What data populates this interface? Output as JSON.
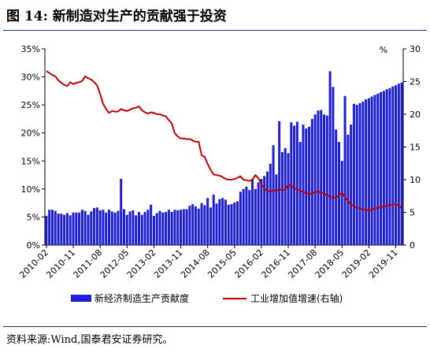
{
  "title": "图 14:  新制造对生产的贡献强于投资",
  "source": "资料来源:Wind,国泰君安证券研究。",
  "chart_data": {
    "type": "bar",
    "y_left": {
      "ticks": [
        "0%",
        "5%",
        "10%",
        "15%",
        "20%",
        "25%",
        "30%",
        "35%"
      ],
      "ylim": [
        0,
        35
      ]
    },
    "y_right": {
      "label": "%",
      "ticks": [
        "0",
        "5",
        "10",
        "15",
        "20",
        "25",
        "30"
      ],
      "ylim": [
        0,
        30
      ]
    },
    "x_tick_labels": [
      "2010-02",
      "2010-11",
      "2011-08",
      "2012-05",
      "2013-02",
      "2013-11",
      "2014-08",
      "2015-05",
      "2016-02",
      "2016-11",
      "2017-08",
      "2018-05",
      "2019-02",
      "2019-11"
    ],
    "first_month": "2010-02",
    "months_count": 120,
    "series": [
      {
        "name": "新经济制造生产贡献度",
        "axis": "left",
        "type": "bar",
        "color": "#1f1fd6",
        "values": [
          5.2,
          6.3,
          6.3,
          6.1,
          5.6,
          5.6,
          5.4,
          5.7,
          5.3,
          5.8,
          5.8,
          5.8,
          6.3,
          6.1,
          5.4,
          6.0,
          6.6,
          6.7,
          6.2,
          6.3,
          5.8,
          6.3,
          6.0,
          5.8,
          6.1,
          11.8,
          6.4,
          5.4,
          6.0,
          6.2,
          5.3,
          5.9,
          5.4,
          5.9,
          6.3,
          7.2,
          5.2,
          5.7,
          6.1,
          5.8,
          5.9,
          6.3,
          5.9,
          6.3,
          6.2,
          6.3,
          6.4,
          6.4,
          7.0,
          7.3,
          6.9,
          6.5,
          7.5,
          7.1,
          8.4,
          6.7,
          9.0,
          7.4,
          8.2,
          8.4,
          8.1,
          7.2,
          7.3,
          7.6,
          7.8,
          9.5,
          10.0,
          10.4,
          9.8,
          11.8,
          10.0,
          11.2,
          11.8,
          12.3,
          13.1,
          14.5,
          17.8,
          12.6,
          22.1,
          16.6,
          17.3,
          16.4,
          21.9,
          21.3,
          22.0,
          18.4,
          21.5,
          20.8,
          21.1,
          22.5,
          23.3,
          24.0,
          24.1,
          23.3,
          23.1,
          31.0,
          28.2,
          20.6,
          18.4,
          15.0,
          26.6,
          19.7,
          21.5,
          25.2,
          25.0,
          25.3,
          25.6,
          26.0,
          26.2,
          26.5,
          26.8,
          27.0,
          27.3,
          27.5,
          27.8,
          28.0,
          28.3,
          28.5,
          28.8,
          29.0
        ]
      },
      {
        "name": "工业增加值增速(右轴)",
        "axis": "right",
        "type": "line",
        "color": "#c00000",
        "values": [
          26.6,
          26.3,
          26.0,
          25.8,
          25.2,
          24.8,
          24.5,
          24.3,
          24.9,
          24.6,
          24.8,
          24.9,
          25.1,
          25.8,
          25.5,
          25.3,
          24.9,
          24.4,
          23.1,
          21.6,
          20.8,
          20.2,
          20.5,
          20.4,
          20.4,
          20.8,
          20.6,
          20.5,
          20.7,
          20.9,
          21.0,
          21.2,
          20.6,
          20.3,
          20.1,
          20.3,
          20.2,
          20.0,
          20.0,
          19.8,
          19.7,
          19.1,
          18.6,
          17.1,
          16.6,
          16.3,
          16.3,
          16.2,
          16.2,
          16.0,
          15.8,
          15.8,
          13.7,
          13.5,
          12.4,
          11.5,
          10.8,
          10.7,
          10.6,
          10.4,
          10.1,
          10.0,
          10.0,
          10.1,
          10.3,
          10.5,
          10.0,
          9.9,
          9.8,
          10.0,
          10.7,
          10.2,
          9.3,
          8.7,
          8.2,
          8.2,
          8.4,
          8.3,
          8.5,
          8.4,
          8.5,
          9.2,
          9.1,
          8.7,
          8.5,
          8.3,
          8.1,
          8.0,
          7.8,
          7.9,
          8.1,
          8.2,
          8.0,
          7.9,
          7.6,
          7.4,
          7.2,
          7.3,
          7.6,
          8.0,
          7.3,
          6.8,
          6.2,
          5.9,
          5.7,
          5.6,
          5.5,
          5.4,
          5.3,
          5.4,
          5.6,
          5.7,
          5.8,
          5.9,
          6.0,
          6.1,
          6.2,
          6.3,
          6.0,
          5.6
        ]
      }
    ],
    "legend": "bottom"
  }
}
